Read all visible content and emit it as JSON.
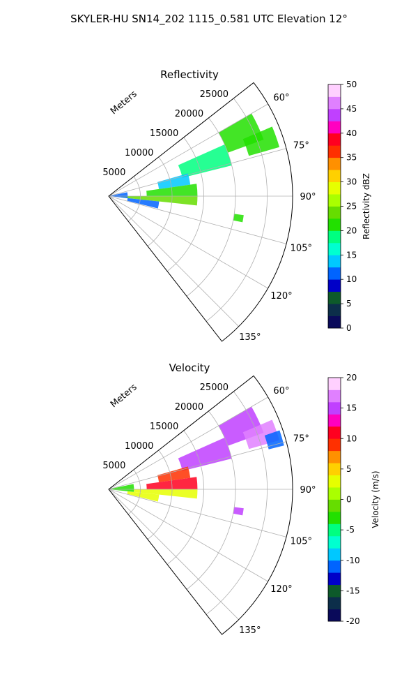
{
  "figure": {
    "title": "SKYLER-HU  SN14_202  1115_0.581 UTC Elevation 12°"
  },
  "chart_data": [
    {
      "type": "heatmap",
      "subtype": "polar-sector-radar-ppi",
      "title": "Reflectivity",
      "range_label": "Meters",
      "range_ticks": [
        "5000",
        "10000",
        "15000",
        "20000",
        "25000"
      ],
      "range_tick_values": [
        5000,
        10000,
        15000,
        20000,
        25000
      ],
      "angle_ticks": [
        "60°",
        "75°",
        "90°",
        "105°",
        "120°",
        "135°"
      ],
      "angle_tick_values": [
        60,
        75,
        90,
        105,
        120,
        135
      ],
      "angle_range_deg": [
        52,
        142
      ],
      "range_max_m": 29000,
      "grid": true,
      "colorbar": {
        "label": "Reflectivity dBZ",
        "min": 0,
        "max": 50,
        "ticks": [
          "0",
          "5",
          "10",
          "15",
          "20",
          "25",
          "30",
          "35",
          "40",
          "45",
          "50"
        ],
        "tick_values": [
          0,
          5,
          10,
          15,
          20,
          25,
          30,
          35,
          40,
          45,
          50
        ],
        "colors": [
          "#0a0a5a",
          "#0c2e4a",
          "#0d5a2a",
          "#0000c8",
          "#0064ff",
          "#00c8ff",
          "#00ffd0",
          "#00ff80",
          "#22e000",
          "#66dd00",
          "#aaff00",
          "#e6ff00",
          "#ffd000",
          "#ff9000",
          "#ff3000",
          "#ff0020",
          "#ff00c0",
          "#c040ff",
          "#e080ff",
          "#ffd0ff"
        ]
      },
      "echo_regions": [
        {
          "az": [
            60,
            70
          ],
          "range_m": [
            20000,
            26000
          ],
          "value": 21
        },
        {
          "az": [
            67,
            74
          ],
          "range_m": [
            23000,
            28000
          ],
          "value": 22
        },
        {
          "az": [
            66,
            76
          ],
          "range_m": [
            12000,
            20000
          ],
          "value": 18
        },
        {
          "az": [
            74,
            82
          ],
          "range_m": [
            8000,
            13000
          ],
          "value": 14
        },
        {
          "az": [
            82,
            90
          ],
          "range_m": [
            6000,
            14000
          ],
          "value": 20
        },
        {
          "az": [
            90,
            96
          ],
          "range_m": [
            2000,
            14000
          ],
          "value": 24
        },
        {
          "az": [
            96,
            104
          ],
          "range_m": [
            3000,
            8000
          ],
          "value": 12
        },
        {
          "az": [
            78,
            96
          ],
          "range_m": [
            300,
            3000
          ],
          "value": 11
        },
        {
          "az": [
            98,
            101
          ],
          "range_m": [
            20000,
            21500
          ],
          "value": 20
        }
      ]
    },
    {
      "type": "heatmap",
      "subtype": "polar-sector-radar-ppi",
      "title": "Velocity",
      "range_label": "Meters",
      "range_ticks": [
        "5000",
        "10000",
        "15000",
        "20000",
        "25000"
      ],
      "range_tick_values": [
        5000,
        10000,
        15000,
        20000,
        25000
      ],
      "angle_ticks": [
        "60°",
        "75°",
        "90°",
        "105°",
        "120°",
        "135°"
      ],
      "angle_tick_values": [
        60,
        75,
        90,
        105,
        120,
        135
      ],
      "angle_range_deg": [
        52,
        142
      ],
      "range_max_m": 29000,
      "grid": true,
      "colorbar": {
        "label": "Velocity (m/s)",
        "min": -20,
        "max": 20,
        "ticks": [
          "-20",
          "-15",
          "-10",
          "-5",
          "0",
          "5",
          "10",
          "15",
          "20"
        ],
        "tick_values": [
          -20,
          -15,
          -10,
          -5,
          0,
          5,
          10,
          15,
          20
        ],
        "colors": [
          "#0a0a5a",
          "#0c2e4a",
          "#0d5a2a",
          "#0000c8",
          "#0064ff",
          "#00c8ff",
          "#00ffd0",
          "#00ff80",
          "#22e000",
          "#66dd00",
          "#aaff00",
          "#e6ff00",
          "#ffd000",
          "#ff9000",
          "#ff3000",
          "#ff0020",
          "#ff00c0",
          "#c040ff",
          "#e080ff",
          "#ffd0ff"
        ]
      },
      "echo_regions": [
        {
          "az": [
            60,
            70
          ],
          "range_m": [
            20000,
            26000
          ],
          "value": 15
        },
        {
          "az": [
            67,
            74
          ],
          "range_m": [
            23000,
            28000
          ],
          "value": 16
        },
        {
          "az": [
            71,
            76
          ],
          "range_m": [
            26000,
            28500
          ],
          "value": -12
        },
        {
          "az": [
            66,
            76
          ],
          "range_m": [
            12000,
            20000
          ],
          "value": 14
        },
        {
          "az": [
            74,
            82
          ],
          "range_m": [
            8000,
            13000
          ],
          "value": 8
        },
        {
          "az": [
            82,
            90
          ],
          "range_m": [
            6000,
            14000
          ],
          "value": 10
        },
        {
          "az": [
            90,
            96
          ],
          "range_m": [
            4000,
            14000
          ],
          "value": 3
        },
        {
          "az": [
            96,
            104
          ],
          "range_m": [
            3000,
            8000
          ],
          "value": 2
        },
        {
          "az": [
            78,
            96
          ],
          "range_m": [
            300,
            4000
          ],
          "value": -4
        },
        {
          "az": [
            98,
            101
          ],
          "range_m": [
            20000,
            21500
          ],
          "value": 14
        }
      ]
    }
  ]
}
